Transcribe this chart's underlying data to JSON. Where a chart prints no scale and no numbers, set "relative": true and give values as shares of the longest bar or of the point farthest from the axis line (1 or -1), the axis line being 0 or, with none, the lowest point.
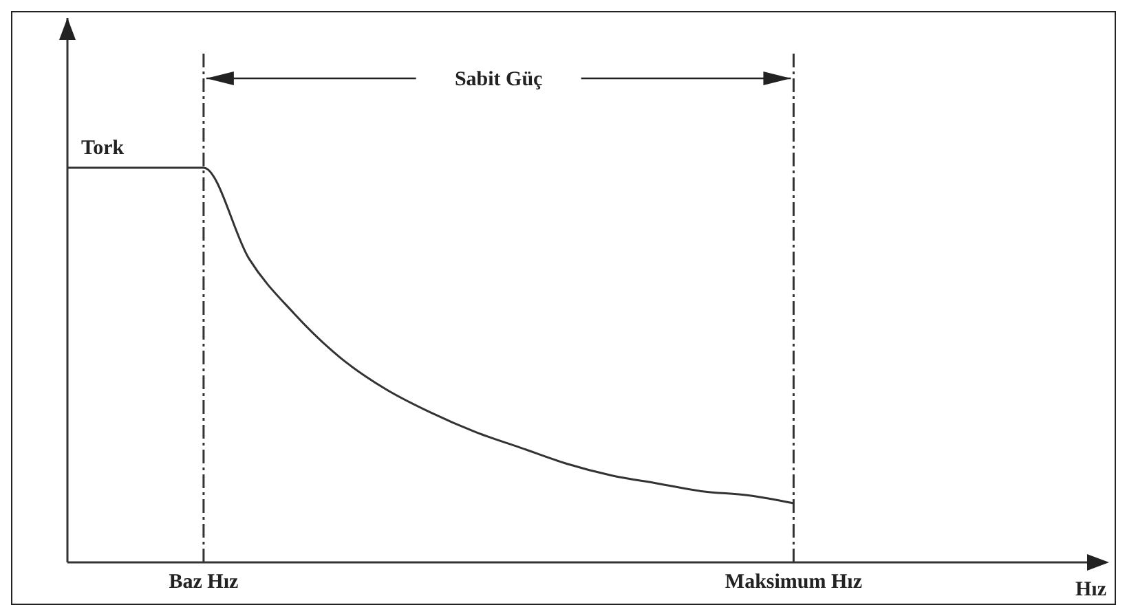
{
  "chart_data": {
    "type": "line",
    "relative": true,
    "categories": [
      null,
      null,
      null,
      "Baz Hız",
      null,
      null,
      null,
      null,
      null,
      null,
      null,
      null,
      null,
      null,
      null,
      null,
      "Maksimum Hız",
      null,
      null,
      null,
      null,
      null,
      null
    ],
    "series": [
      {
        "name": "Tork",
        "color": "#333333",
        "values": [
          1,
          1,
          1,
          1,
          0.77,
          0.63,
          0.52,
          0.44,
          0.38,
          0.33,
          0.29,
          0.25,
          0.22,
          0.2,
          0.18,
          0.17,
          0.15,
          null,
          null,
          null,
          null,
          null,
          null
        ]
      }
    ],
    "xlabel": "Hız",
    "annotations": [
      "Sabit Güç"
    ],
    "ref_lines": [
      {
        "axis": "x",
        "value": "Baz Hız",
        "color": "#333333",
        "line_style": "dashed"
      },
      {
        "axis": "x",
        "value": "Maksimum Hız",
        "color": "#333333",
        "line_style": "dashed"
      }
    ],
    "grid": false,
    "marker": "none",
    "line_style": "solid"
  }
}
